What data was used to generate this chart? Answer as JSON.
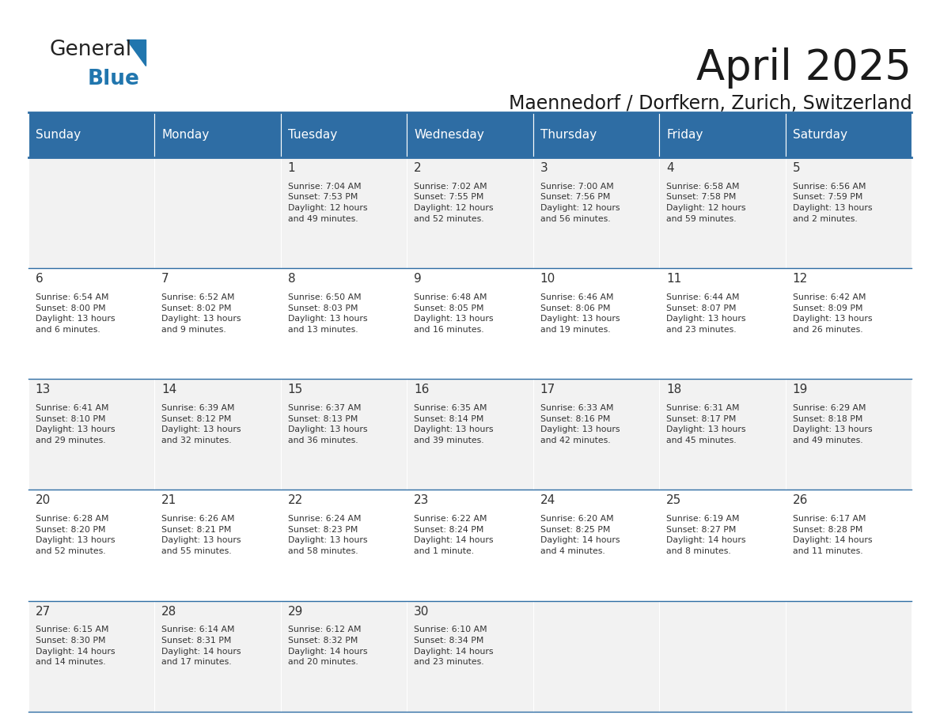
{
  "title": "April 2025",
  "subtitle": "Maennedorf / Dorfkern, Zurich, Switzerland",
  "days_of_week": [
    "Sunday",
    "Monday",
    "Tuesday",
    "Wednesday",
    "Thursday",
    "Friday",
    "Saturday"
  ],
  "header_bg": "#2E6DA4",
  "header_text": "#FFFFFF",
  "row_bg_even": "#F2F2F2",
  "row_bg_odd": "#FFFFFF",
  "text_color": "#333333",
  "border_color": "#2E6DA4",
  "calendar": [
    [
      {
        "day": "",
        "info": ""
      },
      {
        "day": "",
        "info": ""
      },
      {
        "day": "1",
        "info": "Sunrise: 7:04 AM\nSunset: 7:53 PM\nDaylight: 12 hours\nand 49 minutes."
      },
      {
        "day": "2",
        "info": "Sunrise: 7:02 AM\nSunset: 7:55 PM\nDaylight: 12 hours\nand 52 minutes."
      },
      {
        "day": "3",
        "info": "Sunrise: 7:00 AM\nSunset: 7:56 PM\nDaylight: 12 hours\nand 56 minutes."
      },
      {
        "day": "4",
        "info": "Sunrise: 6:58 AM\nSunset: 7:58 PM\nDaylight: 12 hours\nand 59 minutes."
      },
      {
        "day": "5",
        "info": "Sunrise: 6:56 AM\nSunset: 7:59 PM\nDaylight: 13 hours\nand 2 minutes."
      }
    ],
    [
      {
        "day": "6",
        "info": "Sunrise: 6:54 AM\nSunset: 8:00 PM\nDaylight: 13 hours\nand 6 minutes."
      },
      {
        "day": "7",
        "info": "Sunrise: 6:52 AM\nSunset: 8:02 PM\nDaylight: 13 hours\nand 9 minutes."
      },
      {
        "day": "8",
        "info": "Sunrise: 6:50 AM\nSunset: 8:03 PM\nDaylight: 13 hours\nand 13 minutes."
      },
      {
        "day": "9",
        "info": "Sunrise: 6:48 AM\nSunset: 8:05 PM\nDaylight: 13 hours\nand 16 minutes."
      },
      {
        "day": "10",
        "info": "Sunrise: 6:46 AM\nSunset: 8:06 PM\nDaylight: 13 hours\nand 19 minutes."
      },
      {
        "day": "11",
        "info": "Sunrise: 6:44 AM\nSunset: 8:07 PM\nDaylight: 13 hours\nand 23 minutes."
      },
      {
        "day": "12",
        "info": "Sunrise: 6:42 AM\nSunset: 8:09 PM\nDaylight: 13 hours\nand 26 minutes."
      }
    ],
    [
      {
        "day": "13",
        "info": "Sunrise: 6:41 AM\nSunset: 8:10 PM\nDaylight: 13 hours\nand 29 minutes."
      },
      {
        "day": "14",
        "info": "Sunrise: 6:39 AM\nSunset: 8:12 PM\nDaylight: 13 hours\nand 32 minutes."
      },
      {
        "day": "15",
        "info": "Sunrise: 6:37 AM\nSunset: 8:13 PM\nDaylight: 13 hours\nand 36 minutes."
      },
      {
        "day": "16",
        "info": "Sunrise: 6:35 AM\nSunset: 8:14 PM\nDaylight: 13 hours\nand 39 minutes."
      },
      {
        "day": "17",
        "info": "Sunrise: 6:33 AM\nSunset: 8:16 PM\nDaylight: 13 hours\nand 42 minutes."
      },
      {
        "day": "18",
        "info": "Sunrise: 6:31 AM\nSunset: 8:17 PM\nDaylight: 13 hours\nand 45 minutes."
      },
      {
        "day": "19",
        "info": "Sunrise: 6:29 AM\nSunset: 8:18 PM\nDaylight: 13 hours\nand 49 minutes."
      }
    ],
    [
      {
        "day": "20",
        "info": "Sunrise: 6:28 AM\nSunset: 8:20 PM\nDaylight: 13 hours\nand 52 minutes."
      },
      {
        "day": "21",
        "info": "Sunrise: 6:26 AM\nSunset: 8:21 PM\nDaylight: 13 hours\nand 55 minutes."
      },
      {
        "day": "22",
        "info": "Sunrise: 6:24 AM\nSunset: 8:23 PM\nDaylight: 13 hours\nand 58 minutes."
      },
      {
        "day": "23",
        "info": "Sunrise: 6:22 AM\nSunset: 8:24 PM\nDaylight: 14 hours\nand 1 minute."
      },
      {
        "day": "24",
        "info": "Sunrise: 6:20 AM\nSunset: 8:25 PM\nDaylight: 14 hours\nand 4 minutes."
      },
      {
        "day": "25",
        "info": "Sunrise: 6:19 AM\nSunset: 8:27 PM\nDaylight: 14 hours\nand 8 minutes."
      },
      {
        "day": "26",
        "info": "Sunrise: 6:17 AM\nSunset: 8:28 PM\nDaylight: 14 hours\nand 11 minutes."
      }
    ],
    [
      {
        "day": "27",
        "info": "Sunrise: 6:15 AM\nSunset: 8:30 PM\nDaylight: 14 hours\nand 14 minutes."
      },
      {
        "day": "28",
        "info": "Sunrise: 6:14 AM\nSunset: 8:31 PM\nDaylight: 14 hours\nand 17 minutes."
      },
      {
        "day": "29",
        "info": "Sunrise: 6:12 AM\nSunset: 8:32 PM\nDaylight: 14 hours\nand 20 minutes."
      },
      {
        "day": "30",
        "info": "Sunrise: 6:10 AM\nSunset: 8:34 PM\nDaylight: 14 hours\nand 23 minutes."
      },
      {
        "day": "",
        "info": ""
      },
      {
        "day": "",
        "info": ""
      },
      {
        "day": "",
        "info": ""
      }
    ]
  ]
}
